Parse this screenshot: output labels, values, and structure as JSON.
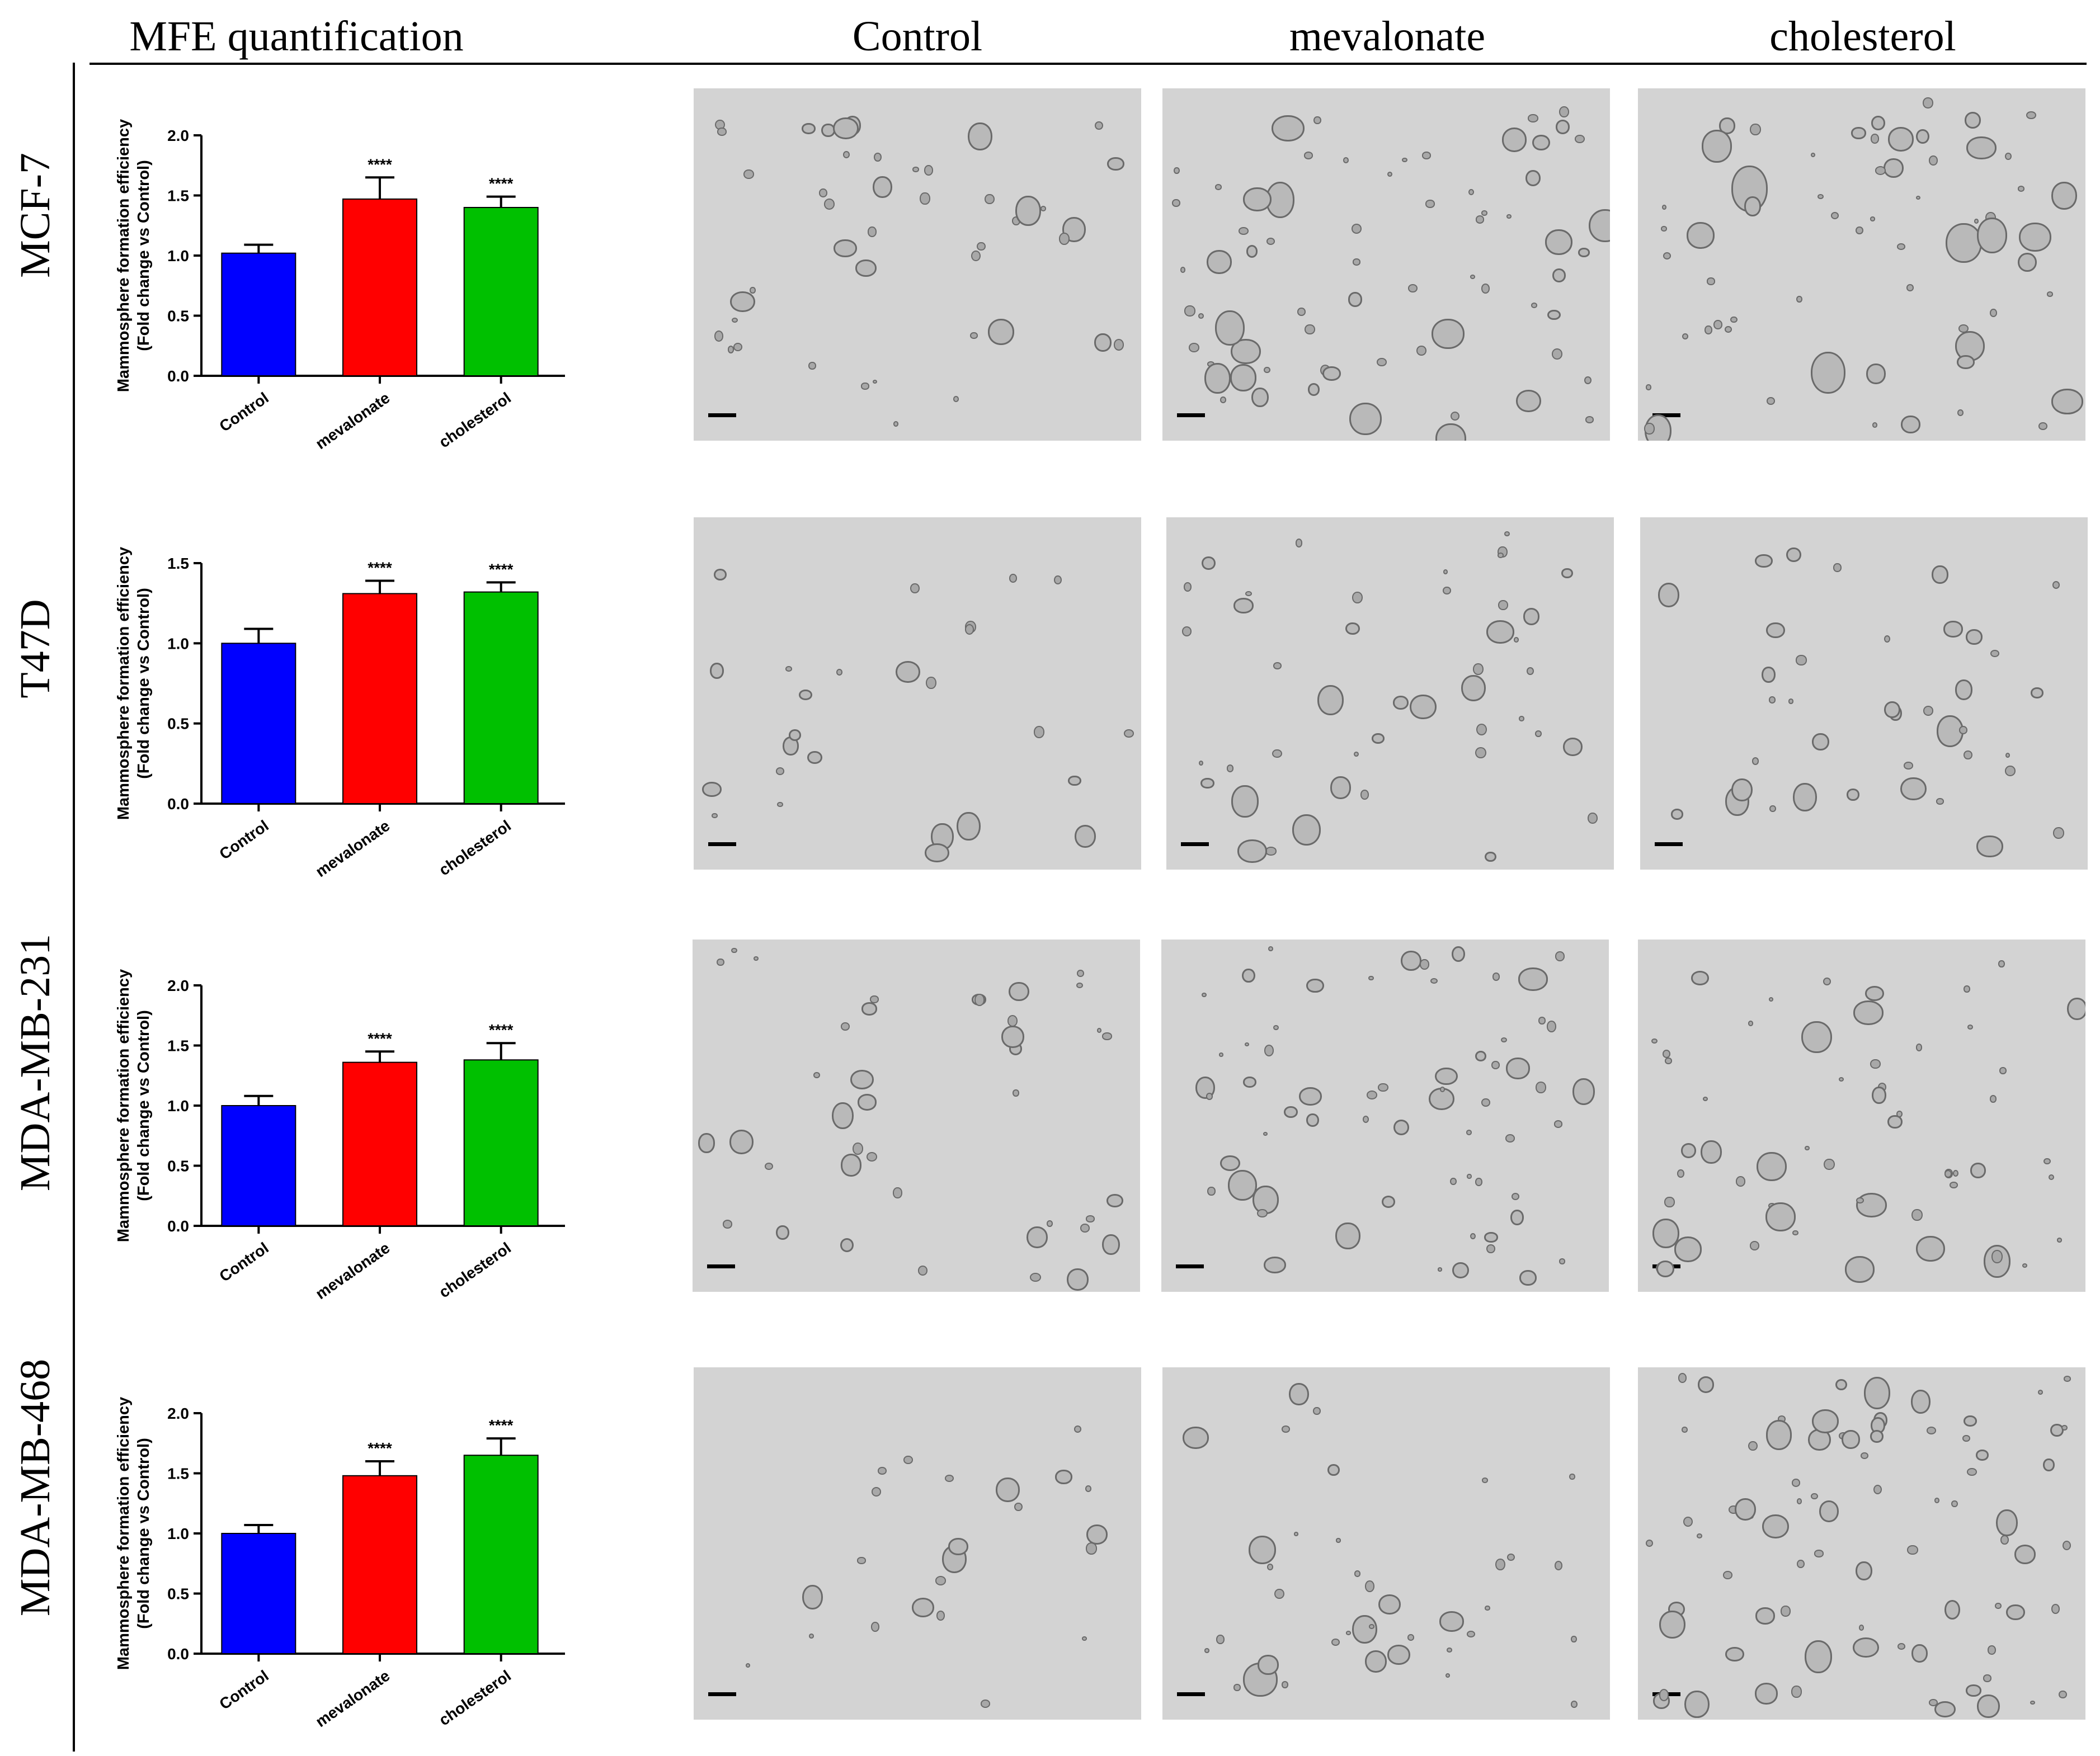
{
  "column_headers": [
    "MFE quantification",
    "Control",
    "mevalonate",
    "cholesterol"
  ],
  "row_labels": [
    "MCF-7",
    "T47D",
    "MDA-MB-231",
    "MDA-MB-468"
  ],
  "colors": {
    "Control": "#0000ff",
    "mevalonate": "#ff0000",
    "cholesterol": "#00c000"
  },
  "chart_data": [
    {
      "type": "bar",
      "categories": [
        "Control",
        "mevalonate",
        "cholesterol"
      ],
      "values": [
        1.02,
        1.47,
        1.4
      ],
      "errors": [
        0.07,
        0.18,
        0.09
      ],
      "significance": [
        "",
        "****",
        "****"
      ],
      "ylabel": [
        "Mammosphere formation efficiency",
        "(Fold change vs Control)"
      ],
      "ylim": [
        0,
        2.0
      ],
      "yticks": [
        "0.0",
        "0.5",
        "1.0",
        "1.5",
        "2.0"
      ]
    },
    {
      "type": "bar",
      "categories": [
        "Control",
        "mevalonate",
        "cholesterol"
      ],
      "values": [
        1.0,
        1.31,
        1.32
      ],
      "errors": [
        0.09,
        0.08,
        0.06
      ],
      "significance": [
        "",
        "****",
        "****"
      ],
      "ylabel": [
        "Mammosphere formation efficiency",
        "(Fold change vs Control)"
      ],
      "ylim": [
        0,
        1.5
      ],
      "yticks": [
        "0.0",
        "0.5",
        "1.0",
        "1.5"
      ]
    },
    {
      "type": "bar",
      "categories": [
        "Control",
        "mevalonate",
        "cholesterol"
      ],
      "values": [
        1.0,
        1.36,
        1.38
      ],
      "errors": [
        0.08,
        0.09,
        0.14
      ],
      "significance": [
        "",
        "****",
        "****"
      ],
      "ylabel": [
        "Mammosphere formation efficiency",
        "(Fold change vs Control)"
      ],
      "ylim": [
        0,
        2.0
      ],
      "yticks": [
        "0.0",
        "0.5",
        "1.0",
        "1.5",
        "2.0"
      ]
    },
    {
      "type": "bar",
      "categories": [
        "Control",
        "mevalonate",
        "cholesterol"
      ],
      "values": [
        1.0,
        1.48,
        1.65
      ],
      "errors": [
        0.07,
        0.12,
        0.14
      ],
      "significance": [
        "",
        "****",
        "****"
      ],
      "ylabel": [
        "Mammosphere formation efficiency",
        "(Fold change vs Control)"
      ],
      "ylim": [
        0,
        2.0
      ],
      "yticks": [
        "0.0",
        "0.5",
        "1.0",
        "1.5",
        "2.0"
      ]
    }
  ]
}
